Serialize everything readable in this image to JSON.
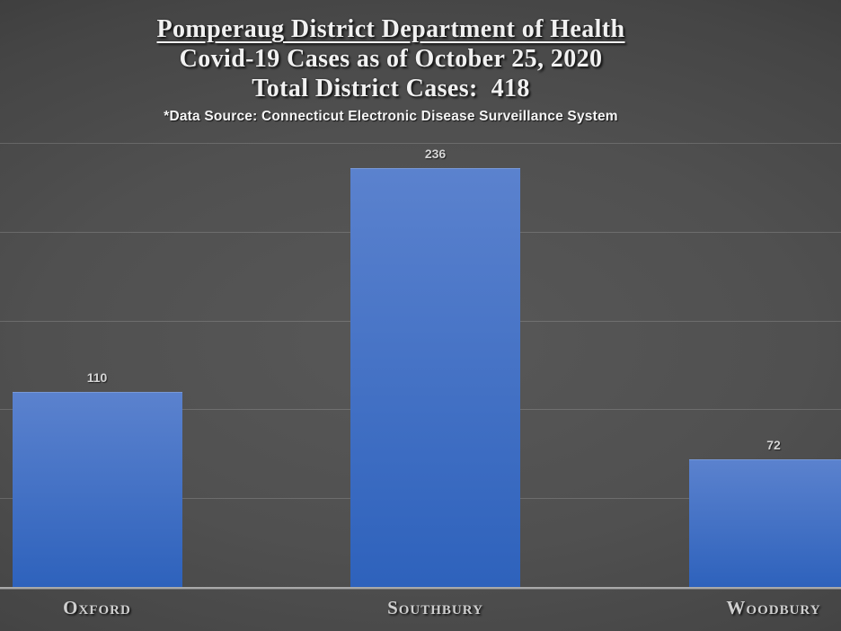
{
  "chart_data": {
    "type": "bar",
    "title": "Pomperaug District Department of Health",
    "subtitle": "Covid-19 Cases as of October 25, 2020",
    "total_line": "Total District Cases:  418",
    "total_cases": 418,
    "source_note": "*Data Source: Connecticut Electronic Disease Surveillance System",
    "categories": [
      "Oxford",
      "Southbury",
      "Woodbury"
    ],
    "values": [
      110,
      236,
      72
    ],
    "xlabel": "",
    "ylabel": "",
    "ylim": [
      0,
      250
    ],
    "grid": true,
    "gridline_interval": 50,
    "legend": false,
    "colors": {
      "bar_top": "#5b82ce",
      "bar_bottom": "#2e62bc",
      "gridline": "rgba(255,255,255,0.16)",
      "axis_line": "#a9a9a9",
      "value_label": "#d5d5d5",
      "category_label": "#cfcfcf",
      "title_text": "#f1f1f1",
      "background_center": "#585858",
      "background_edge": "#2b2b2b"
    }
  }
}
